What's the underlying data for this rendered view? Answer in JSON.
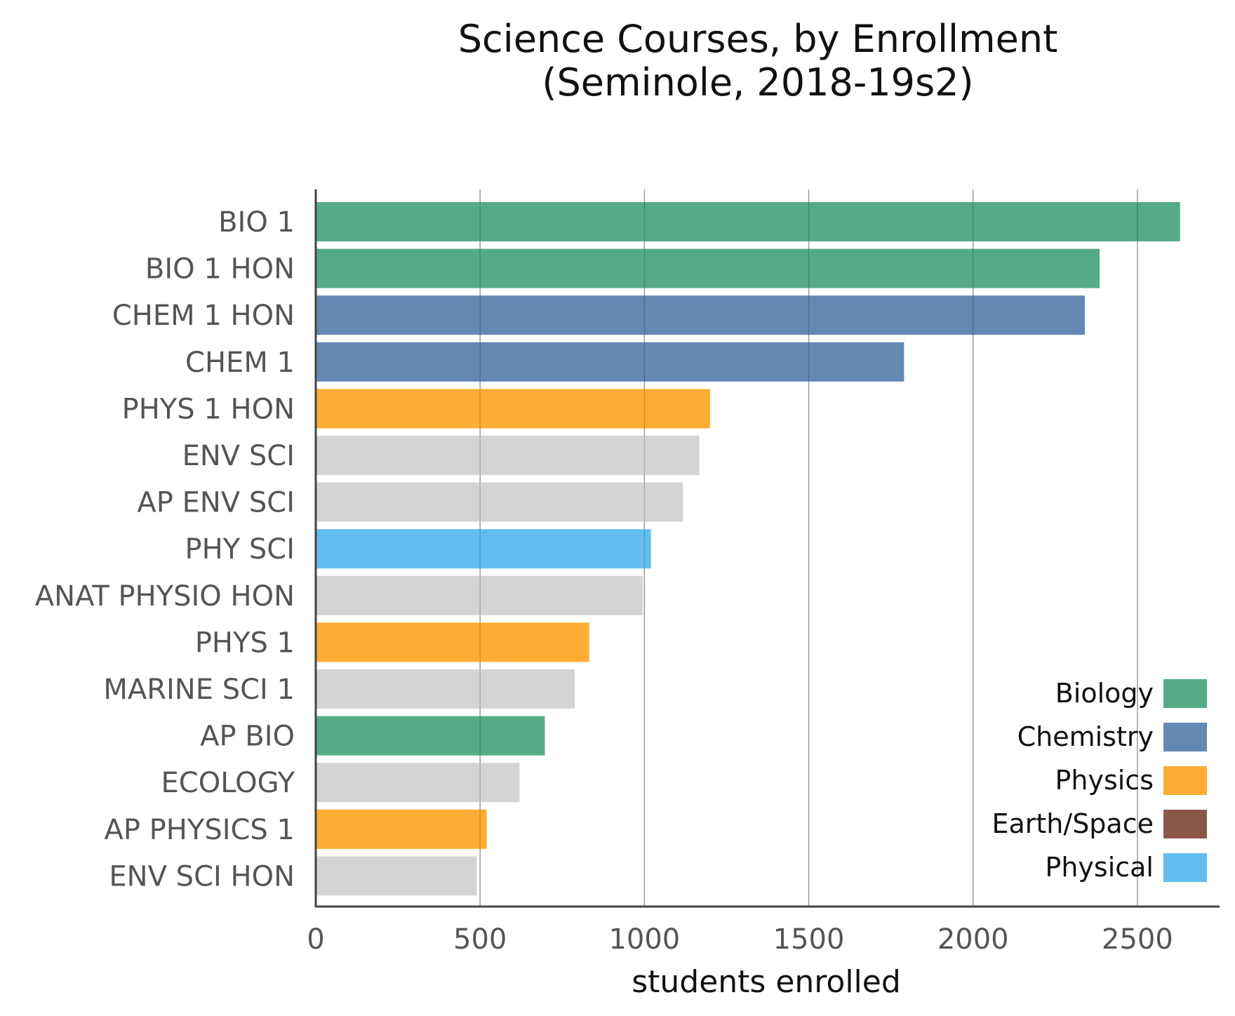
{
  "chart_data": {
    "type": "bar",
    "orientation": "horizontal",
    "title": [
      "Science Courses, by Enrollment",
      "(Seminole, 2018-19s2)"
    ],
    "xlabel": "students enrolled",
    "ylabel": "",
    "xlim": [
      0,
      2750
    ],
    "xticks": [
      0,
      500,
      1000,
      1500,
      2000,
      2500
    ],
    "grid": "vertical",
    "legend_position": "bottom-right",
    "bars": [
      {
        "label": "BIO 1",
        "value": 2630,
        "category": "Biology"
      },
      {
        "label": "BIO 1 HON",
        "value": 2385,
        "category": "Biology"
      },
      {
        "label": "CHEM 1 HON",
        "value": 2340,
        "category": "Chemistry"
      },
      {
        "label": "CHEM 1",
        "value": 1790,
        "category": "Chemistry"
      },
      {
        "label": "PHYS 1 HON",
        "value": 1200,
        "category": "Physics"
      },
      {
        "label": "ENV SCI",
        "value": 1167,
        "category": "Other"
      },
      {
        "label": "AP ENV SCI",
        "value": 1117,
        "category": "Other"
      },
      {
        "label": "PHY SCI",
        "value": 1020,
        "category": "Physical"
      },
      {
        "label": "ANAT PHYSIO HON",
        "value": 995,
        "category": "Other"
      },
      {
        "label": "PHYS 1",
        "value": 832,
        "category": "Physics"
      },
      {
        "label": "MARINE SCI 1",
        "value": 788,
        "category": "Other"
      },
      {
        "label": "AP BIO",
        "value": 697,
        "category": "Biology"
      },
      {
        "label": "ECOLOGY",
        "value": 620,
        "category": "Other"
      },
      {
        "label": "AP PHYSICS 1",
        "value": 520,
        "category": "Physics"
      },
      {
        "label": "ENV SCI HON",
        "value": 490,
        "category": "Other"
      }
    ],
    "legend": [
      {
        "name": "Biology",
        "color": "#55ab88"
      },
      {
        "name": "Chemistry",
        "color": "#6488b4"
      },
      {
        "name": "Physics",
        "color": "#fdad33"
      },
      {
        "name": "Earth/Space",
        "color": "#8b5748"
      },
      {
        "name": "Physical",
        "color": "#63bdee"
      }
    ],
    "colors": {
      "Biology": "#55ab88",
      "Chemistry": "#6488b4",
      "Physics": "#fdad33",
      "Earth/Space": "#8b5748",
      "Physical": "#63bdee",
      "Other": "#d4d4d4"
    }
  }
}
